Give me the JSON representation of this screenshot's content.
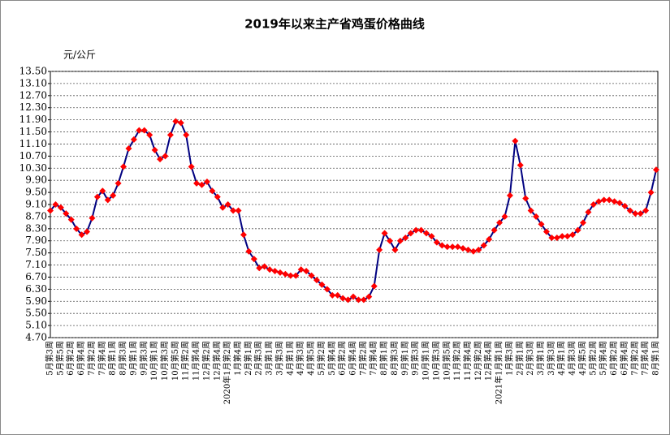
{
  "chart_data": {
    "type": "line",
    "title": "2019年以来主产省鸡蛋价格曲线",
    "y_label": "元/公斤",
    "categories": [
      "5月第3周",
      null,
      "5月第5周",
      null,
      "6月第2周",
      null,
      "6月第4周",
      null,
      "7月第2周",
      null,
      "7月第4周",
      null,
      "8月第1周",
      null,
      "8月第3周",
      null,
      "9月第1周",
      null,
      "9月第3周",
      null,
      "10月第1周",
      null,
      "10月第3周",
      null,
      "10月第5周",
      null,
      "11月第2周",
      null,
      "11月第4周",
      null,
      "12月第2周",
      null,
      "12月第4周",
      null,
      "2020年1月第2周",
      null,
      "1月第4周",
      null,
      "2月第1周",
      null,
      "2月第3周",
      null,
      "3月第1周",
      null,
      "3月第3周",
      null,
      "4月第1周",
      null,
      "4月第3周",
      null,
      "4月第5周",
      null,
      "5月第2周",
      null,
      "5月第4周",
      null,
      "6月第2周",
      null,
      "6月第4周",
      null,
      "7月第2周",
      null,
      "7月第4周",
      null,
      "8月第1周",
      null,
      "8月第3周",
      null,
      "9月第1周",
      null,
      "9月第3周",
      null,
      "10月第1周",
      null,
      "10月第3周",
      null,
      "10月第5周",
      null,
      "11月第2周",
      null,
      "11月第4周",
      null,
      "12月第2周",
      null,
      "12月第4周",
      null,
      "2021年1月第1周",
      null,
      "1月第3周",
      null,
      "2月第1周",
      null,
      "2月第3周",
      null,
      "3月第1周",
      null,
      "3月第3周",
      null,
      "4月第1周",
      null,
      "4月第3周",
      null,
      "4月第5周",
      null,
      "5月第2周",
      null,
      "5月第4周",
      null,
      "6月第2周",
      null,
      "6月第4周",
      null,
      "7月第2周",
      null,
      "7月第4周",
      null,
      "8月第1周"
    ],
    "values": [
      8.9,
      9.1,
      9.0,
      8.8,
      8.6,
      8.3,
      8.1,
      8.2,
      8.65,
      9.35,
      9.55,
      9.25,
      9.4,
      9.8,
      10.35,
      10.95,
      11.25,
      11.55,
      11.55,
      11.4,
      10.9,
      10.6,
      10.7,
      11.4,
      11.85,
      11.8,
      11.4,
      10.35,
      9.8,
      9.75,
      9.85,
      9.55,
      9.35,
      9.0,
      9.1,
      8.9,
      8.9,
      8.1,
      7.55,
      7.3,
      7.0,
      7.05,
      6.95,
      6.9,
      6.85,
      6.8,
      6.75,
      6.75,
      6.95,
      6.9,
      6.75,
      6.6,
      6.45,
      6.3,
      6.1,
      6.1,
      6.0,
      5.95,
      6.05,
      5.95,
      5.95,
      6.05,
      6.4,
      7.6,
      8.15,
      7.9,
      7.6,
      7.9,
      8.0,
      8.15,
      8.25,
      8.25,
      8.15,
      8.05,
      7.85,
      7.75,
      7.7,
      7.7,
      7.7,
      7.65,
      7.6,
      7.55,
      7.6,
      7.75,
      7.95,
      8.25,
      8.5,
      8.7,
      9.4,
      11.2,
      10.4,
      9.3,
      8.9,
      8.7,
      8.45,
      8.2,
      8.0,
      8.0,
      8.05,
      8.05,
      8.1,
      8.25,
      8.5,
      8.85,
      9.1,
      9.2,
      9.25,
      9.25,
      9.2,
      9.15,
      9.05,
      8.9,
      8.8,
      8.8,
      8.9,
      9.5,
      10.25
    ],
    "color": "#000080",
    "marker_color": "#ff0000",
    "grid": true,
    "ylim": [
      4.7,
      13.5
    ],
    "yticks": [
      {
        "value": 4.7,
        "label": "4.70"
      },
      {
        "value": 5.1,
        "label": "5.10"
      },
      {
        "value": 5.5,
        "label": "5.50"
      },
      {
        "value": 5.9,
        "label": "5.90"
      },
      {
        "value": 6.3,
        "label": "6.30"
      },
      {
        "value": 6.7,
        "label": "6.70"
      },
      {
        "value": 7.1,
        "label": "7.10"
      },
      {
        "value": 7.5,
        "label": "7.50"
      },
      {
        "value": 7.9,
        "label": "7.90"
      },
      {
        "value": 8.3,
        "label": "8.30"
      },
      {
        "value": 8.7,
        "label": "8.70"
      },
      {
        "value": 9.1,
        "label": "9.10"
      },
      {
        "value": 9.5,
        "label": "9.50"
      },
      {
        "value": 9.9,
        "label": "9.90"
      },
      {
        "value": 10.3,
        "label": "10.30"
      },
      {
        "value": 10.7,
        "label": "10.70"
      },
      {
        "value": 11.1,
        "label": "11.10"
      },
      {
        "value": 11.5,
        "label": "11.50"
      },
      {
        "value": 11.9,
        "label": "11.90"
      },
      {
        "value": 12.3,
        "label": "12.30"
      },
      {
        "value": 12.7,
        "label": "12.70"
      },
      {
        "value": 13.1,
        "label": "13.10"
      },
      {
        "value": 13.5,
        "label": "13.50"
      }
    ]
  }
}
